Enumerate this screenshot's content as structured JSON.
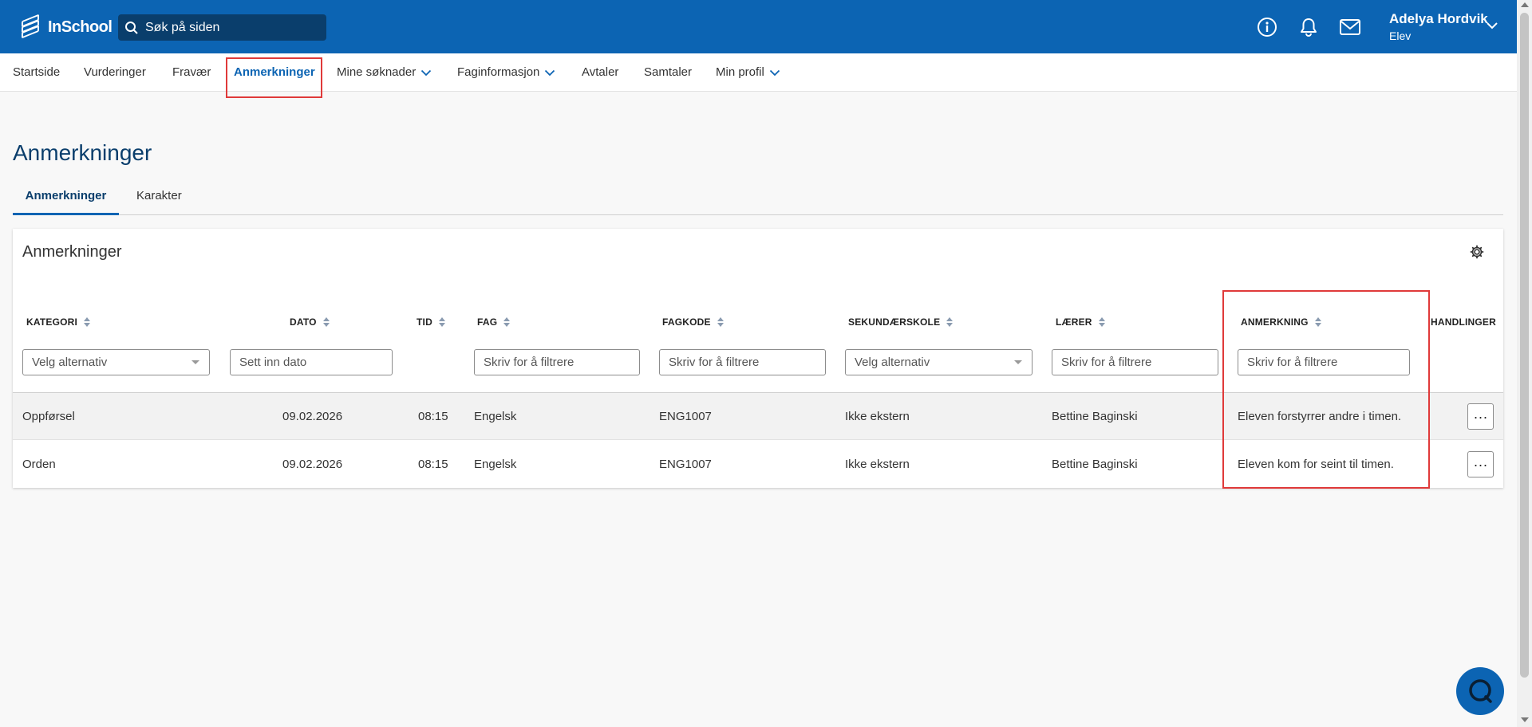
{
  "header": {
    "logo_text": "InSchool",
    "search_placeholder": "Søk på siden",
    "user_name": "Adelya Hordvik",
    "user_role": "Elev",
    "icons": [
      "info-icon",
      "bell-icon",
      "mail-icon",
      "chevron-down-icon"
    ]
  },
  "nav": {
    "items": [
      {
        "label": "Startside"
      },
      {
        "label": "Vurderinger"
      },
      {
        "label": "Fravær"
      },
      {
        "label": "Anmerkninger",
        "active": true
      },
      {
        "label": "Mine søknader",
        "dropdown": true
      },
      {
        "label": "Faginformasjon",
        "dropdown": true
      },
      {
        "label": "Avtaler"
      },
      {
        "label": "Samtaler"
      },
      {
        "label": "Min profil",
        "dropdown": true
      }
    ]
  },
  "page": {
    "title": "Anmerkninger",
    "tabs": [
      {
        "label": "Anmerkninger",
        "active": true
      },
      {
        "label": "Karakter"
      }
    ]
  },
  "card": {
    "title": "Anmerkninger",
    "columns": [
      {
        "label": "KATEGORI",
        "filter_type": "select",
        "filter_text": "Velg alternativ"
      },
      {
        "label": "DATO",
        "filter_type": "input",
        "filter_text": "Sett inn dato"
      },
      {
        "label": "TID",
        "filter_type": "none",
        "filter_text": ""
      },
      {
        "label": "FAG",
        "filter_type": "input",
        "filter_text": "Skriv for å filtrere"
      },
      {
        "label": "FAGKODE",
        "filter_type": "input",
        "filter_text": "Skriv for å filtrere"
      },
      {
        "label": "SEKUNDÆRSKOLE",
        "filter_type": "select",
        "filter_text": "Velg alternativ"
      },
      {
        "label": "LÆRER",
        "filter_type": "input",
        "filter_text": "Skriv for å filtrere"
      },
      {
        "label": "ANMERKNING",
        "filter_type": "input",
        "filter_text": "Skriv for å filtrere"
      },
      {
        "label": "HANDLINGER",
        "filter_type": "none",
        "filter_text": ""
      }
    ],
    "rows": [
      [
        "Oppførsel",
        "09.02.2026",
        "08:15",
        "Engelsk",
        "ENG1007",
        "Ikke ekstern",
        "Bettine Baginski",
        "Eleven forstyrrer andre i timen."
      ],
      [
        "Orden",
        "09.02.2026",
        "08:15",
        "Engelsk",
        "ENG1007",
        "Ikke ekstern",
        "Bettine Baginski",
        "Eleven kom for seint til timen."
      ]
    ],
    "actions_label": "···"
  },
  "colors": {
    "header_bg": "#0c64b3",
    "search_bg": "#0a3e6c",
    "title_color": "#0a3e6c",
    "highlight": "#e03a3a"
  }
}
